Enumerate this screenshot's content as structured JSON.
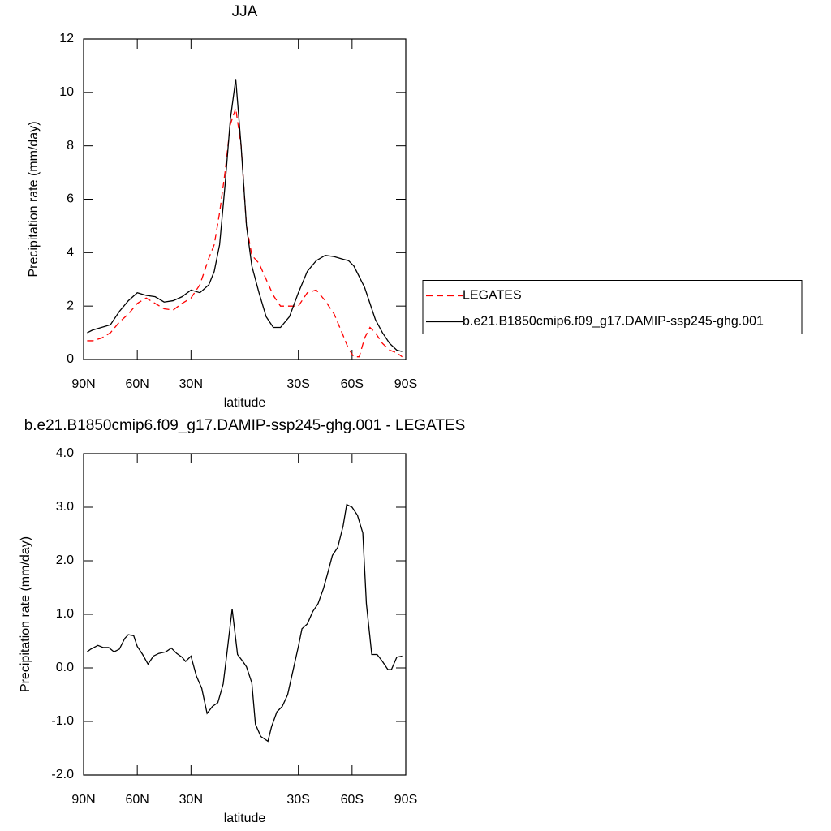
{
  "chart_data": [
    {
      "type": "line",
      "title": "JJA",
      "xlabel": "latitude",
      "ylabel": "Precipitation rate (mm/day)",
      "x": [
        88,
        85,
        80,
        75,
        70,
        65,
        60,
        55,
        50,
        45,
        40,
        35,
        30,
        25,
        20,
        17,
        14,
        11,
        8,
        5,
        2,
        -1,
        -4,
        -8,
        -12,
        -16,
        -20,
        -25,
        -30,
        -35,
        -40,
        -45,
        -50,
        -55,
        -58,
        -61,
        -64,
        -67,
        -70,
        -73,
        -77,
        -81,
        -85,
        -88
      ],
      "xlim": [
        90,
        -90
      ],
      "xticks": [
        {
          "value": 90,
          "label": "90N"
        },
        {
          "value": 60,
          "label": "60N"
        },
        {
          "value": 30,
          "label": "30N"
        },
        {
          "value": -30,
          "label": "30S"
        },
        {
          "value": -60,
          "label": "60S"
        },
        {
          "value": -90,
          "label": "90S"
        }
      ],
      "ylim": [
        0,
        12
      ],
      "yticks": [
        0,
        2,
        4,
        6,
        8,
        10,
        12
      ],
      "legend_position": "right",
      "series": [
        {
          "name": "LEGATES",
          "color": "#ff0000",
          "line_style": "dashed",
          "values": [
            0.7,
            0.7,
            0.8,
            1.0,
            1.4,
            1.7,
            2.1,
            2.3,
            2.1,
            1.9,
            1.85,
            2.1,
            2.3,
            2.8,
            3.8,
            4.3,
            5.5,
            7.0,
            8.8,
            9.4,
            8.0,
            5.0,
            3.9,
            3.6,
            3.0,
            2.4,
            2.0,
            2.0,
            2.0,
            2.5,
            2.6,
            2.2,
            1.7,
            0.9,
            0.4,
            0.1,
            0.1,
            0.8,
            1.2,
            1.0,
            0.6,
            0.35,
            0.25,
            0.1
          ]
        },
        {
          "name": "b.e21.B1850cmip6.f09_g17.DAMIP-ssp245-ghg.001",
          "color": "#000000",
          "line_style": "solid",
          "values": [
            1.0,
            1.1,
            1.2,
            1.3,
            1.8,
            2.2,
            2.5,
            2.4,
            2.35,
            2.15,
            2.2,
            2.35,
            2.6,
            2.5,
            2.8,
            3.3,
            4.3,
            6.5,
            9.0,
            10.5,
            8.0,
            5.0,
            3.5,
            2.5,
            1.6,
            1.2,
            1.2,
            1.6,
            2.5,
            3.3,
            3.7,
            3.9,
            3.85,
            3.75,
            3.7,
            3.5,
            3.1,
            2.7,
            2.1,
            1.5,
            1.0,
            0.6,
            0.35,
            0.3
          ]
        }
      ]
    },
    {
      "type": "line",
      "title": "b.e21.B1850cmip6.f09_g17.DAMIP-ssp245-ghg.001 - LEGATES",
      "xlabel": "latitude",
      "ylabel": "Precipitation rate (mm/day)",
      "x": [
        88,
        86,
        82,
        79,
        76,
        73,
        70,
        67,
        65,
        62,
        60,
        57,
        54,
        51,
        48,
        44,
        41,
        38,
        35,
        33,
        30,
        27,
        24,
        21,
        18,
        15,
        12,
        10,
        7,
        4,
        1,
        -1,
        -4,
        -6,
        -9,
        -13,
        -15,
        -18,
        -21,
        -24,
        -27,
        -30,
        -32,
        -35,
        -38,
        -41,
        -44,
        -46,
        -49,
        -52,
        -55,
        -57,
        -60,
        -63,
        -66,
        -68,
        -71,
        -74,
        -77,
        -80,
        -82,
        -85,
        -88
      ],
      "xlim": [
        90,
        -90
      ],
      "xticks": [
        {
          "value": 90,
          "label": "90N"
        },
        {
          "value": 60,
          "label": "60N"
        },
        {
          "value": 30,
          "label": "30N"
        },
        {
          "value": -30,
          "label": "30S"
        },
        {
          "value": -60,
          "label": "60S"
        },
        {
          "value": -90,
          "label": "90S"
        }
      ],
      "ylim": [
        -2,
        4
      ],
      "yticks": [
        {
          "value": -2,
          "label": "-2.0"
        },
        {
          "value": -1,
          "label": "-1.0"
        },
        {
          "value": 0,
          "label": "0.0"
        },
        {
          "value": 1,
          "label": "1.0"
        },
        {
          "value": 2,
          "label": "2.0"
        },
        {
          "value": 3,
          "label": "3.0"
        },
        {
          "value": 4,
          "label": "4.0"
        }
      ],
      "series": [
        {
          "color": "#000000",
          "line_style": "solid",
          "values": [
            0.3,
            0.35,
            0.42,
            0.38,
            0.38,
            0.3,
            0.35,
            0.55,
            0.62,
            0.6,
            0.4,
            0.25,
            0.07,
            0.22,
            0.27,
            0.3,
            0.37,
            0.27,
            0.2,
            0.12,
            0.22,
            -0.15,
            -0.38,
            -0.85,
            -0.72,
            -0.65,
            -0.3,
            0.25,
            1.1,
            0.25,
            0.12,
            0.02,
            -0.28,
            -1.05,
            -1.28,
            -1.37,
            -1.1,
            -0.82,
            -0.72,
            -0.5,
            -0.05,
            0.4,
            0.73,
            0.82,
            1.05,
            1.2,
            1.48,
            1.72,
            2.1,
            2.25,
            2.65,
            3.05,
            3.0,
            2.85,
            2.52,
            1.2,
            0.25,
            0.25,
            0.12,
            -0.03,
            -0.03,
            0.2,
            0.22
          ]
        }
      ]
    }
  ]
}
